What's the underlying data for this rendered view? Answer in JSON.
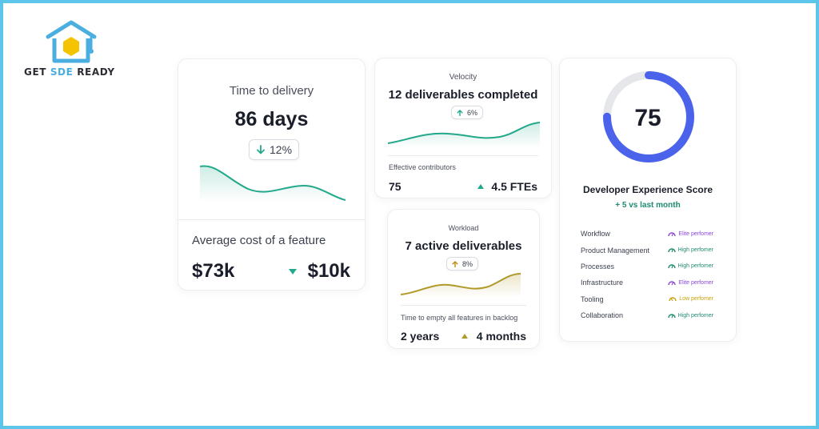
{
  "brand": {
    "name_part1": "GET ",
    "name_accent": "SDE",
    "name_part2": " READY",
    "color_primary": "#4aaee0",
    "color_hex": "#f5c400"
  },
  "delivery_card": {
    "title": "Time to delivery",
    "value": "86 days",
    "change": "12%",
    "change_direction": "down",
    "cost_label": "Average cost of a feature",
    "cost_value": "$73k",
    "cost_delta": "$10k",
    "accent_color": "#22a88a"
  },
  "velocity_card": {
    "label": "Velocity",
    "headline": "12 deliverables completed",
    "change": "6%",
    "change_direction": "up",
    "sub_label": "Effective contributors",
    "sub_value": "75",
    "sub_delta": "4.5 FTEs",
    "accent_color": "#22a88a"
  },
  "workload_card": {
    "label": "Workload",
    "headline": "7 active deliverables",
    "change": "8%",
    "change_direction": "up",
    "sub_label": "Time to empty all features in backlog",
    "sub_value": "2 years",
    "sub_delta": "4 months",
    "accent_color": "#b09a2a"
  },
  "dx_card": {
    "score": "75",
    "score_fraction": 0.75,
    "title": "Developer Experience Score",
    "delta": "+ 5 vs last month",
    "gauge_color": "#4a63ea",
    "rows": [
      {
        "label": "Workflow",
        "rating": "Elite perfomer",
        "icon": "gauge-icon",
        "color": "#8a46d8"
      },
      {
        "label": "Product Management",
        "rating": "High perfomer",
        "icon": "gauge-icon",
        "color": "#1f8a6f"
      },
      {
        "label": "Processes",
        "rating": "High perfomer",
        "icon": "gauge-icon",
        "color": "#1f8a6f"
      },
      {
        "label": "Infrastructure",
        "rating": "Elite perfomer",
        "icon": "gauge-icon",
        "color": "#8a46d8"
      },
      {
        "label": "Tooling",
        "rating": "Low perfomer",
        "icon": "gauge-icon",
        "color": "#c9a10a"
      },
      {
        "label": "Collaboration",
        "rating": "High perfomer",
        "icon": "gauge-icon",
        "color": "#1f8a6f"
      }
    ]
  }
}
